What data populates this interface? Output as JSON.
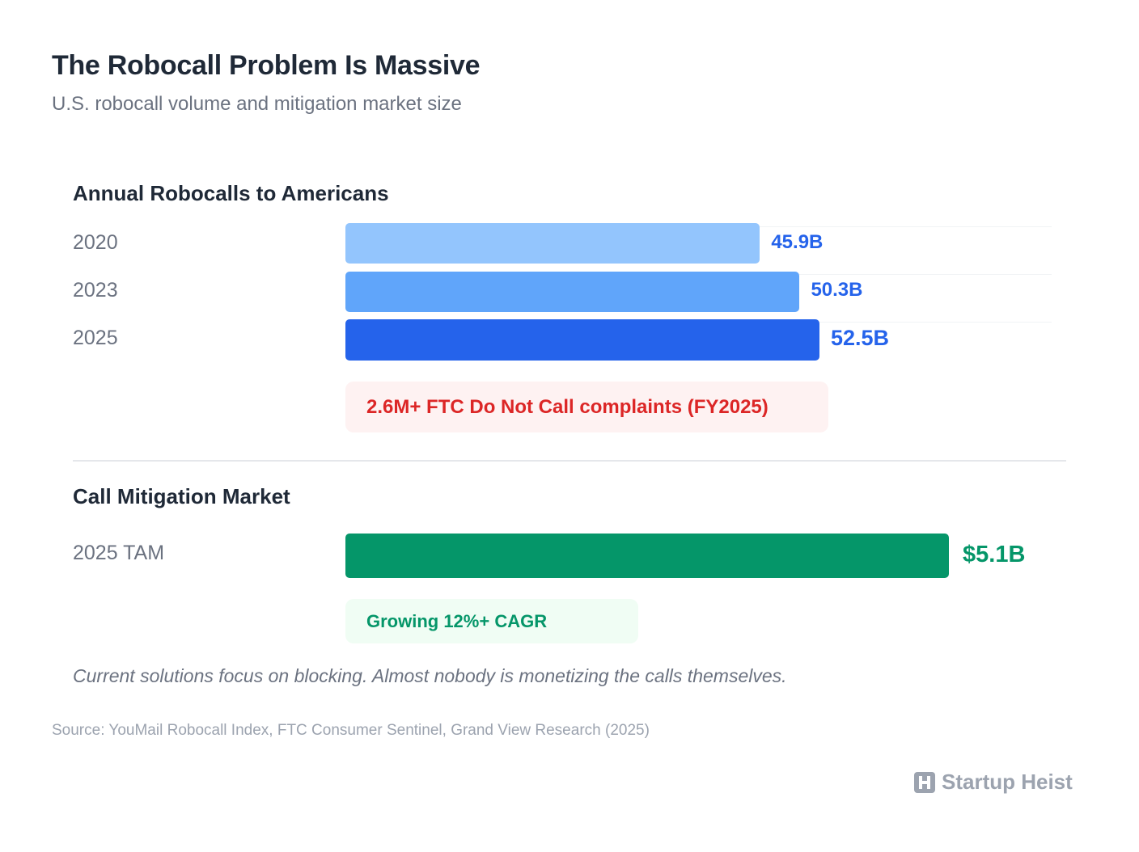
{
  "title": "The Robocall Problem Is Massive",
  "subtitle": "U.S. robocall volume and mitigation market size",
  "chart_data": [
    {
      "type": "bar",
      "orientation": "horizontal",
      "title": "Annual Robocalls to Americans",
      "categories": [
        "2020",
        "2023",
        "2025"
      ],
      "values": [
        45.9,
        50.3,
        52.5
      ],
      "value_labels": [
        "45.9B",
        "50.3B",
        "52.5B"
      ],
      "unit": "billion calls",
      "colors": [
        "#93c5fd",
        "#60a5fa",
        "#2563eb"
      ],
      "label_color": "#2563eb",
      "annotation": "2.6M+ FTC Do Not Call complaints (FY2025)"
    },
    {
      "type": "bar",
      "orientation": "horizontal",
      "title": "Call Mitigation Market",
      "categories": [
        "2025 TAM"
      ],
      "values": [
        5.1
      ],
      "value_labels": [
        "$5.1B"
      ],
      "unit": "billion USD",
      "colors": [
        "#059669"
      ],
      "label_color": "#059669",
      "annotation": "Growing 12%+ CAGR"
    }
  ],
  "note": "Current solutions focus on blocking. Almost nobody is monetizing the calls themselves.",
  "source": "Source: YouMail Robocall Index, FTC Consumer Sentinel, Grand View Research (2025)",
  "brand": {
    "name": "Startup Heist",
    "icon": "h-logo-icon",
    "color": "#9ca3af"
  }
}
